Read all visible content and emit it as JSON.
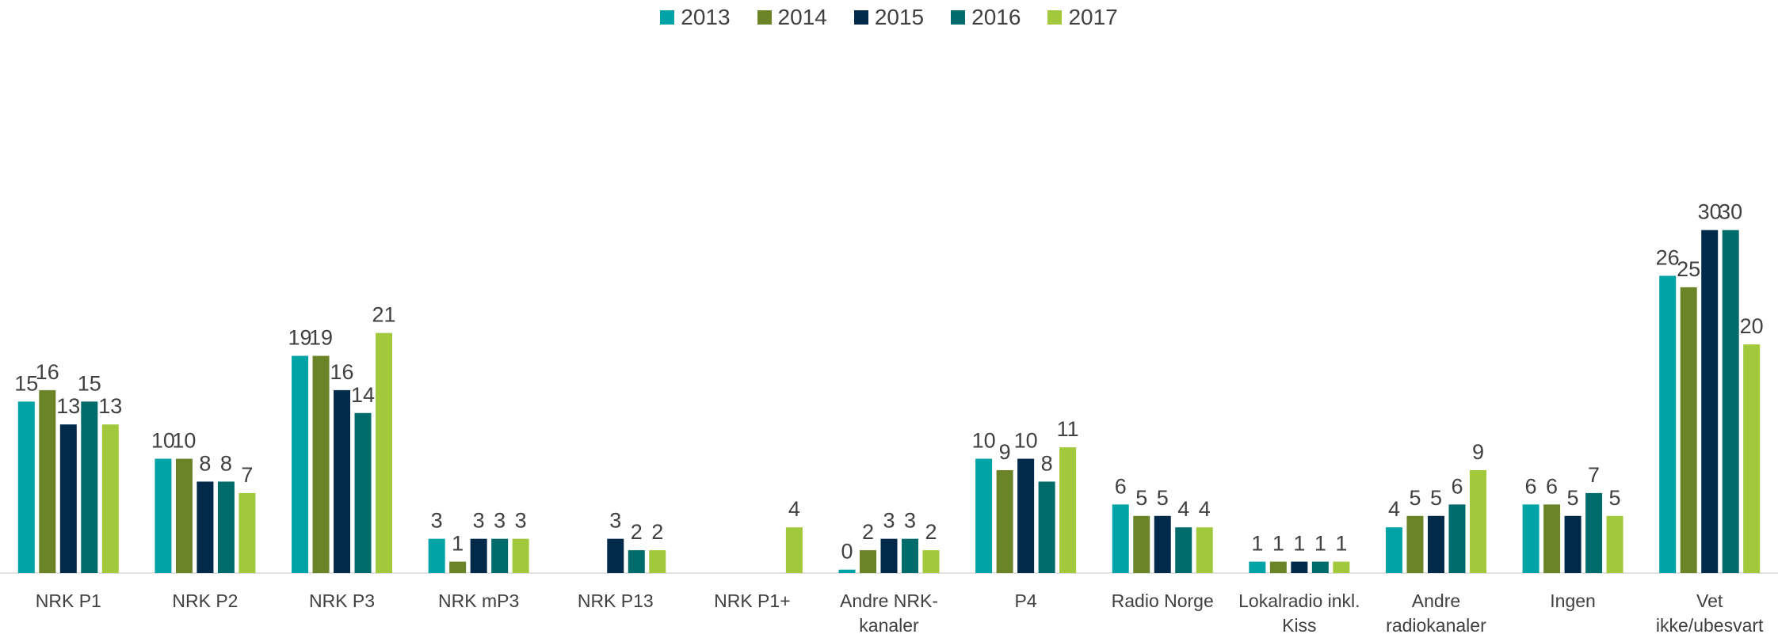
{
  "chart_data": {
    "type": "bar",
    "categories": [
      "NRK P1",
      "NRK P2",
      "NRK P3",
      "NRK mP3",
      "NRK P13",
      "NRK P1+",
      "Andre NRK-kanaler",
      "P4",
      "Radio Norge",
      "Lokalradio inkl. Kiss",
      "Andre radiokanaler",
      "Ingen",
      "Vet ikke/ubesvart"
    ],
    "series": [
      {
        "name": "2013",
        "color": "#00a3a6",
        "values": [
          15,
          10,
          19,
          3,
          null,
          null,
          0.3,
          10,
          6,
          1,
          4,
          6,
          26
        ],
        "value_labels": [
          "15",
          "10",
          "19",
          "3",
          null,
          null,
          "0",
          "10",
          "6",
          "1",
          "4",
          "6",
          "26"
        ]
      },
      {
        "name": "2014",
        "color": "#6a8427",
        "values": [
          16,
          10,
          19,
          1,
          null,
          null,
          2,
          9,
          5,
          1,
          5,
          6,
          25
        ]
      },
      {
        "name": "2015",
        "color": "#00294a",
        "values": [
          13,
          8,
          16,
          3,
          3,
          null,
          3,
          10,
          5,
          1,
          5,
          5,
          30
        ]
      },
      {
        "name": "2016",
        "color": "#006b6b",
        "values": [
          15,
          8,
          14,
          3,
          2,
          null,
          3,
          8,
          4,
          1,
          6,
          7,
          30
        ]
      },
      {
        "name": "2017",
        "color": "#a2c83c",
        "values": [
          13,
          7,
          21,
          3,
          2,
          4,
          2,
          11,
          4,
          1,
          9,
          5,
          20
        ]
      }
    ],
    "ylim": [
      0,
      45
    ],
    "legend": "top"
  }
}
